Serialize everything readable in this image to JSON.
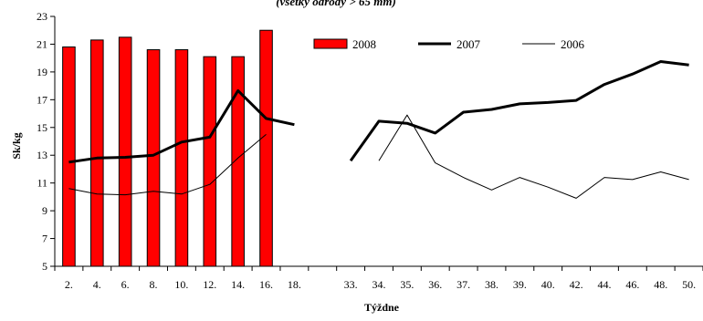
{
  "chart_data": {
    "type": "bar",
    "title": "",
    "subtitle": "(všetky odrody > 65 mm)",
    "xlabel": "Týždne",
    "ylabel": "Sk/kg",
    "ylim": [
      5,
      23
    ],
    "yticks": [
      5,
      7,
      9,
      11,
      13,
      15,
      17,
      19,
      21,
      23
    ],
    "categories": [
      "2.",
      "4.",
      "6.",
      "8.",
      "10.",
      "12.",
      "14.",
      "16.",
      "18.",
      "",
      "33.",
      "34.",
      "35.",
      "36.",
      "37.",
      "38.",
      "39.",
      "40.",
      "42.",
      "44.",
      "46.",
      "48.",
      "50."
    ],
    "grid": false,
    "legend_position": "top-right",
    "series": [
      {
        "name": "2008",
        "kind": "bar",
        "color": "#ff0000",
        "values": [
          20.8,
          21.3,
          21.5,
          20.6,
          20.6,
          20.1,
          20.1,
          22.0,
          null,
          null,
          null,
          null,
          null,
          null,
          null,
          null,
          null,
          null,
          null,
          null,
          null,
          null,
          null
        ]
      },
      {
        "name": "2007",
        "kind": "line",
        "style": "thick",
        "color": "#000000",
        "values": [
          12.5,
          12.8,
          12.85,
          13.0,
          13.95,
          14.3,
          17.65,
          15.65,
          15.2,
          null,
          12.6,
          15.45,
          15.3,
          14.6,
          16.1,
          16.3,
          16.7,
          16.8,
          16.95,
          18.1,
          18.85,
          19.75,
          19.5
        ]
      },
      {
        "name": "2006",
        "kind": "line",
        "style": "thin",
        "color": "#000000",
        "values": [
          10.6,
          10.2,
          10.15,
          10.4,
          10.2,
          10.9,
          12.8,
          14.5,
          null,
          null,
          null,
          12.6,
          15.9,
          12.45,
          11.4,
          10.5,
          11.4,
          10.7,
          9.9,
          11.4,
          11.25,
          11.8,
          11.25
        ]
      }
    ]
  }
}
